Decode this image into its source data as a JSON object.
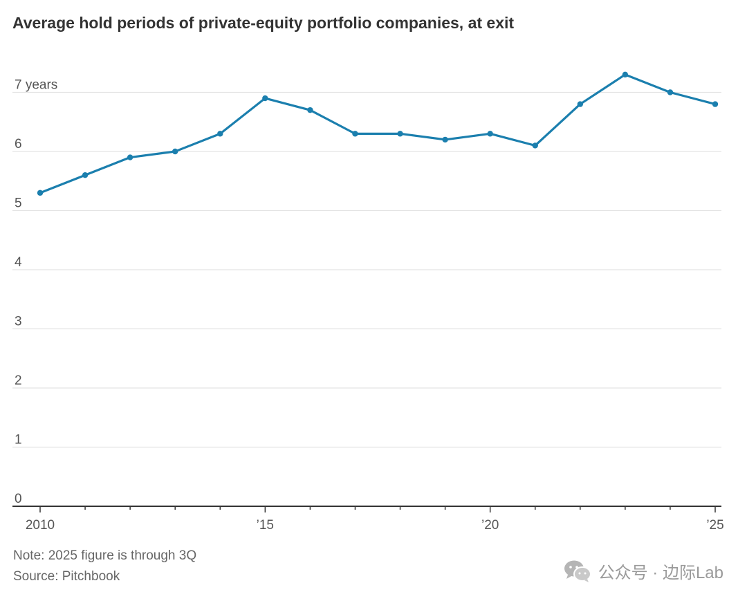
{
  "chart_data": {
    "type": "line",
    "title": "Average hold periods of private-equity portfolio companies, at exit",
    "x": [
      2010,
      2011,
      2012,
      2013,
      2014,
      2015,
      2016,
      2017,
      2018,
      2019,
      2020,
      2021,
      2022,
      2023,
      2024,
      2025
    ],
    "series": [
      {
        "values": [
          5.3,
          5.6,
          5.9,
          6.0,
          6.3,
          6.9,
          6.7,
          6.3,
          6.3,
          6.2,
          6.3,
          6.1,
          6.8,
          7.3,
          7.0,
          6.8
        ],
        "color": "#1b7fae"
      }
    ],
    "ylim": [
      0,
      7.5
    ],
    "yticks": [
      0,
      1,
      2,
      3,
      4,
      5,
      6,
      7
    ],
    "ytick_labels": [
      "0",
      "1",
      "2",
      "3",
      "4",
      "5",
      "6",
      "7 years"
    ],
    "xticks": [
      2010,
      2015,
      2020,
      2025
    ],
    "xtick_labels": [
      "2010",
      "’15",
      "’20",
      "’25"
    ],
    "grid": true,
    "gridline_color": "#e3e3e3",
    "axis_color": "#333333",
    "notes": [
      "Note: 2025 figure is through 3Q",
      "Source: Pitchbook"
    ]
  },
  "watermark": {
    "icon": "wechat-icon",
    "text": "公众号 · 边际Lab"
  }
}
